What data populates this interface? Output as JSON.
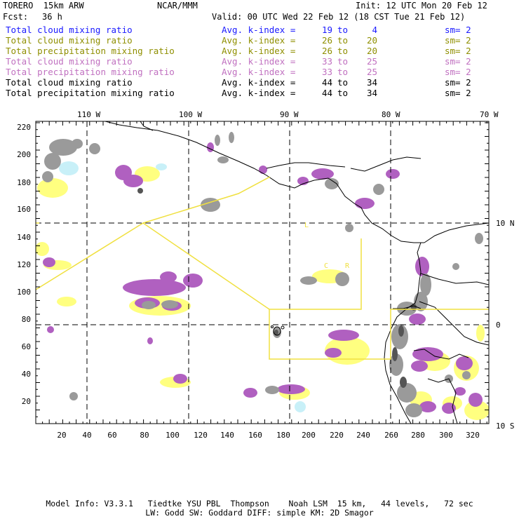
{
  "header": {
    "model": "TORERO  15km ARW",
    "org": "NCAR/MMM",
    "init": "Init: 12 UTC Mon 20 Feb 12",
    "fcst_label": "Fcst:",
    "fcst_value": "36 h",
    "valid": "Valid: 00 UTC Wed 22 Feb 12 (18 CST Tue 21 Feb 12)"
  },
  "legend": [
    {
      "name": "Total cloud mixing ratio",
      "k_label": "Avg. k-index =",
      "k_from": "19",
      "to": "to",
      "k_to": "4",
      "sm": "sm= 2",
      "color": "#1a1aff"
    },
    {
      "name": "Total cloud mixing ratio",
      "k_label": "Avg. k-index =",
      "k_from": "26",
      "to": "to",
      "k_to": "20",
      "sm": "sm= 2",
      "color": "#8f8f00"
    },
    {
      "name": "Total precipitation mixing ratio",
      "k_label": "Avg. k-index =",
      "k_from": "26",
      "to": "to",
      "k_to": "20",
      "sm": "sm= 2",
      "color": "#8f8f00"
    },
    {
      "name": "Total cloud mixing ratio",
      "k_label": "Avg. k-index =",
      "k_from": "33",
      "to": "to",
      "k_to": "25",
      "sm": "sm= 2",
      "color": "#c070c0"
    },
    {
      "name": "Total precipitation mixing ratio",
      "k_label": "Avg. k-index =",
      "k_from": "33",
      "to": "to",
      "k_to": "25",
      "sm": "sm= 2",
      "color": "#c070c0"
    },
    {
      "name": "Total cloud mixing ratio",
      "k_label": "Avg. k-index =",
      "k_from": "44",
      "to": "to",
      "k_to": "34",
      "sm": "sm= 2",
      "color": "#000000"
    },
    {
      "name": "Total precipitation mixing ratio",
      "k_label": "Avg. k-index =",
      "k_from": "44",
      "to": "to",
      "k_to": "34",
      "sm": "sm= 2",
      "color": "#000000"
    }
  ],
  "map": {
    "top_labels": [
      "110 W",
      "100 W",
      "90 W",
      "80 W",
      "70 W"
    ],
    "right_labels": [
      "10 N",
      "0",
      "10 S"
    ],
    "x_ticks": [
      "20",
      "40",
      "60",
      "80",
      "100",
      "120",
      "140",
      "160",
      "180",
      "200",
      "220",
      "240",
      "260",
      "280",
      "300",
      "320"
    ],
    "y_ticks": [
      "220",
      "200",
      "180",
      "160",
      "140",
      "120",
      "100",
      "80",
      "60",
      "40",
      "20"
    ],
    "colors": {
      "frame": "#000000",
      "grid": "#000000",
      "coast": "#000000",
      "yellow_line": "#f0e040",
      "fill_light_yellow": "#ffff80",
      "fill_yellow": "#f0f060",
      "fill_purple": "#b060c0",
      "fill_gray": "#909090",
      "fill_dark": "#505050",
      "fill_cyan": "#c8f0f8"
    }
  },
  "footer": {
    "line1": "Model Info: V3.3.1   Tiedtke YSU PBL  Thompson    Noah LSM  15 km,   44 levels,   72 sec",
    "line2": "LW: Godd SW: Goddard DIFF: simple KM: 2D Smagor"
  }
}
